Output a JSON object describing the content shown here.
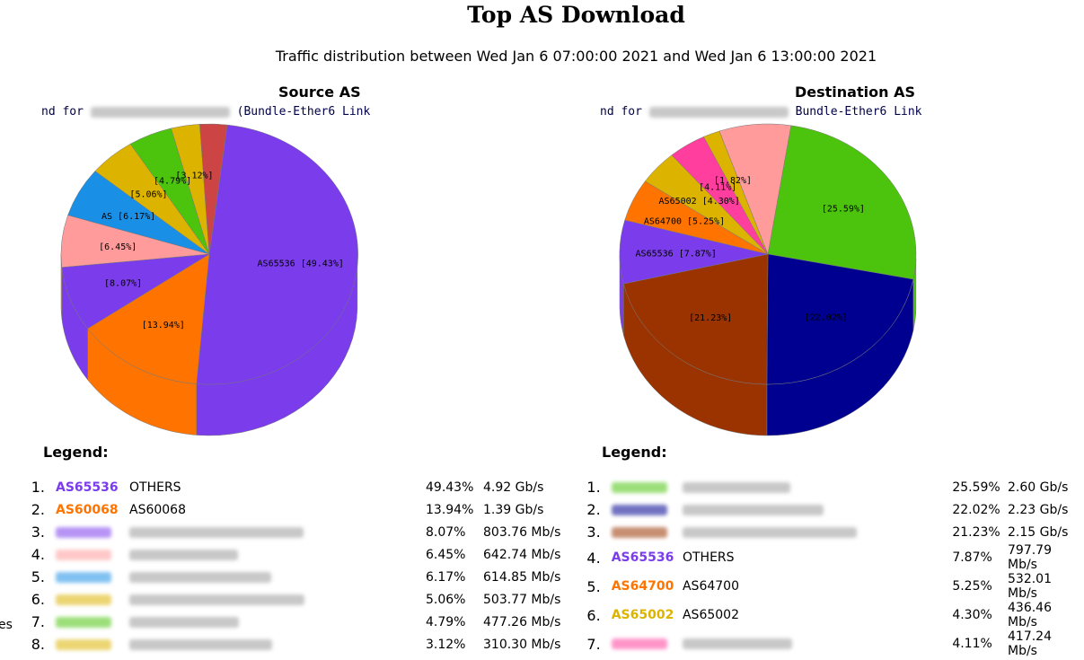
{
  "header": {
    "title": "Top AS Download",
    "subtitle": "Traffic distribution between Wed Jan 6 07:00:00 2021 and Wed Jan 6 13:00:00 2021"
  },
  "side_note": "es",
  "chart_data": [
    {
      "type": "pie",
      "title": "Source AS",
      "caption_prefix": "nd for",
      "caption_suffix": "(Bundle-Ether6 Link",
      "slices": [
        {
          "label": "AS65536",
          "value": 49.43,
          "color": "#7b3cec"
        },
        {
          "label": "AS60068",
          "value": 13.94,
          "color": "#ff7400"
        },
        {
          "label": "",
          "value": 8.07,
          "color": "#7b3cec"
        },
        {
          "label": "",
          "value": 6.45,
          "color": "#ff9b9b"
        },
        {
          "label": "",
          "value": 6.17,
          "color": "#1a8fe6"
        },
        {
          "label": "",
          "value": 5.06,
          "color": "#dcb400"
        },
        {
          "label": "",
          "value": 4.79,
          "color": "#4cc40e"
        },
        {
          "label": "",
          "value": 3.12,
          "color": "#dcb400"
        },
        {
          "label": "",
          "value": 2.97,
          "color": "#cc4444"
        }
      ],
      "slice_labels": [
        "AS65536 [49.43%]",
        "[13.94%]",
        "[8.07%]",
        "[6.45%]",
        "AS [6.17%]",
        "[5.06%]",
        "[4.79%]",
        "[3.12%]",
        ""
      ]
    },
    {
      "type": "pie",
      "title": "Destination AS",
      "caption_prefix": "nd for",
      "caption_suffix": "Bundle-Ether6 Link",
      "slices": [
        {
          "label": "",
          "value": 25.59,
          "color": "#4cc40e"
        },
        {
          "label": "",
          "value": 22.02,
          "color": "#000090"
        },
        {
          "label": "",
          "value": 21.23,
          "color": "#9a3300"
        },
        {
          "label": "AS65536",
          "value": 7.87,
          "color": "#7b3cec"
        },
        {
          "label": "AS64700",
          "value": 5.25,
          "color": "#ff7400"
        },
        {
          "label": "AS65002",
          "value": 4.3,
          "color": "#dcb400"
        },
        {
          "label": "",
          "value": 4.11,
          "color": "#ff3e9e"
        },
        {
          "label": "",
          "value": 1.82,
          "color": "#dcb400"
        },
        {
          "label": "",
          "value": 7.81,
          "color": "#ff9b9b"
        }
      ],
      "slice_labels": [
        "[25.59%]",
        "[22.02%]",
        "[21.23%]",
        "AS65536 [7.87%]",
        "AS64700 [5.25%]",
        "AS65002 [4.30%]",
        "[4.11%]",
        "[1.82%]",
        ""
      ]
    }
  ],
  "legend_label": "Legend:",
  "source_legend": [
    {
      "rank": "1.",
      "asn": "AS65536",
      "name": "OTHERS",
      "pct": "49.43%",
      "rate": "4.92 Gb/s",
      "color": "#7b3cec"
    },
    {
      "rank": "2.",
      "asn": "AS60068",
      "name": "AS60068",
      "pct": "13.94%",
      "rate": "1.39 Gb/s",
      "color": "#ff7400"
    },
    {
      "rank": "3.",
      "asn": "",
      "name": "",
      "pct": "8.07%",
      "rate": "803.76 Mb/s",
      "color": "#7b3cec"
    },
    {
      "rank": "4.",
      "asn": "",
      "name": "",
      "pct": "6.45%",
      "rate": "642.74 Mb/s",
      "color": "#ff9b9b"
    },
    {
      "rank": "5.",
      "asn": "",
      "name": "",
      "pct": "6.17%",
      "rate": "614.85 Mb/s",
      "color": "#1a8fe6"
    },
    {
      "rank": "6.",
      "asn": "",
      "name": "",
      "pct": "5.06%",
      "rate": "503.77 Mb/s",
      "color": "#dcb400"
    },
    {
      "rank": "7.",
      "asn": "",
      "name": "",
      "pct": "4.79%",
      "rate": "477.26 Mb/s",
      "color": "#4cc40e"
    },
    {
      "rank": "8.",
      "asn": "",
      "name": "",
      "pct": "3.12%",
      "rate": "310.30 Mb/s",
      "color": "#dcb400"
    }
  ],
  "destination_legend": [
    {
      "rank": "1.",
      "asn": "",
      "name": "",
      "pct": "25.59%",
      "rate": "2.60 Gb/s",
      "color": "#4cc40e"
    },
    {
      "rank": "2.",
      "asn": "",
      "name": "",
      "pct": "22.02%",
      "rate": "2.23 Gb/s",
      "color": "#000090"
    },
    {
      "rank": "3.",
      "asn": "",
      "name": "",
      "pct": "21.23%",
      "rate": "2.15 Gb/s",
      "color": "#9a3300"
    },
    {
      "rank": "4.",
      "asn": "AS65536",
      "name": "OTHERS",
      "pct": "7.87%",
      "rate": "797.79 Mb/s",
      "color": "#7b3cec"
    },
    {
      "rank": "5.",
      "asn": "AS64700",
      "name": "AS64700",
      "pct": "5.25%",
      "rate": "532.01 Mb/s",
      "color": "#ff7400"
    },
    {
      "rank": "6.",
      "asn": "AS65002",
      "name": "AS65002",
      "pct": "4.30%",
      "rate": "436.46 Mb/s",
      "color": "#dcb400"
    },
    {
      "rank": "7.",
      "asn": "",
      "name": "",
      "pct": "4.11%",
      "rate": "417.24 Mb/s",
      "color": "#ff3e9e"
    }
  ]
}
